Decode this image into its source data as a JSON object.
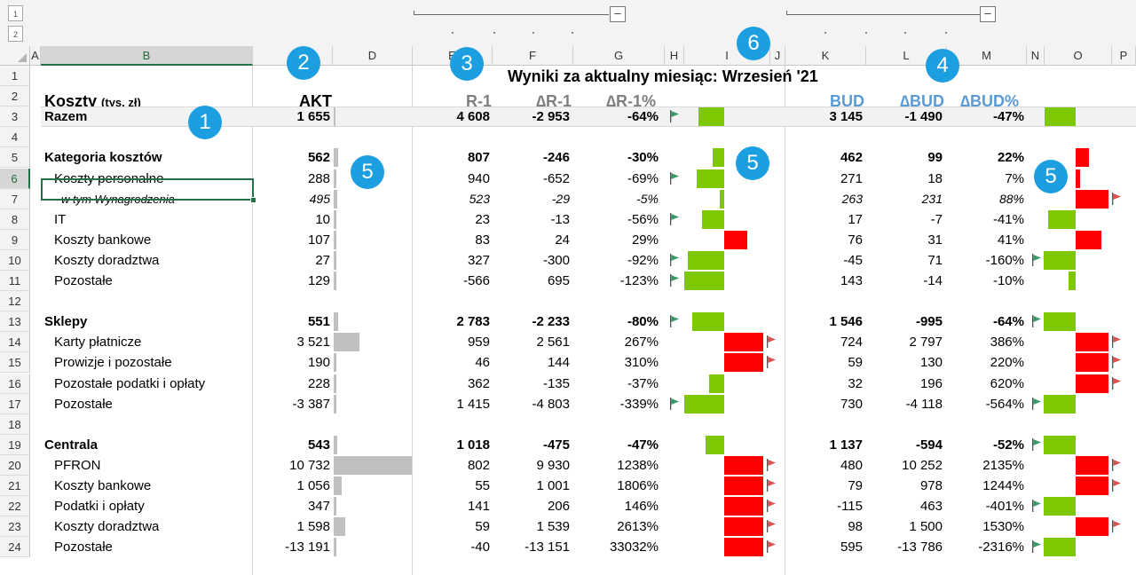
{
  "outline": {
    "levels": [
      "1",
      "2"
    ],
    "collapse_symbol": "–"
  },
  "columns": [
    "A",
    "B",
    "D",
    "E",
    "F",
    "G",
    "H",
    "I",
    "J",
    "K",
    "L",
    "M",
    "N",
    "O",
    "P"
  ],
  "selected_column": "B",
  "selected_row": "6",
  "title": "Wyniki za aktualny miesiąc: Wrzesień '21",
  "headers": {
    "koszty": "Koszty",
    "koszty_unit": "(tys. zł)",
    "akt": "AKT",
    "r1": "R-1",
    "dr1": "∆R-1",
    "dr1p": "∆R-1%",
    "bud": "BUD",
    "dbud": "∆BUD",
    "dbudp": "∆BUD%"
  },
  "badges": [
    "1",
    "2",
    "3",
    "4",
    "5",
    "5",
    "5",
    "6"
  ],
  "colors": {
    "good": "#7dc800",
    "bad": "#ff0000",
    "neutral_bar": "#bfbfbf",
    "flag_good": "#3a9a6a",
    "flag_bad": "#d9534f",
    "badge": "#1b9fe0",
    "bud_header": "#5b9bd5"
  },
  "rows": [
    {
      "n": "1"
    },
    {
      "n": "2"
    },
    {
      "n": "3",
      "label": "Razem",
      "style": "bold",
      "band": true,
      "akt": "1 655",
      "r1": "4 608",
      "dr1": "-2 953",
      "dr1p": "-64%",
      "bud": "3 145",
      "dbud": "-1 490",
      "dbudp": "-47%",
      "akt_v": 1655,
      "dr1p_v": -64,
      "dbudp_v": -47,
      "flag_r": true,
      "flag_b": false
    },
    {
      "n": "4"
    },
    {
      "n": "5",
      "label": "Kategoria kosztów",
      "style": "bold",
      "akt": "562",
      "r1": "807",
      "dr1": "-246",
      "dr1p": "-30%",
      "bud": "462",
      "dbud": "99",
      "dbudp": "22%",
      "akt_v": 562,
      "dr1p_v": -30,
      "dbudp_v": 22,
      "flag_r": false,
      "flag_b": false
    },
    {
      "n": "6",
      "label": "Koszty personalne",
      "style": "indent",
      "akt": "288",
      "r1": "940",
      "dr1": "-652",
      "dr1p": "-69%",
      "bud": "271",
      "dbud": "18",
      "dbudp": "7%",
      "akt_v": 288,
      "dr1p_v": -69,
      "dbudp_v": 7,
      "flag_r": true,
      "flag_b": false
    },
    {
      "n": "7",
      "label": "w tym Wynagrodzenia",
      "style": "italic",
      "akt": "495",
      "r1": "523",
      "dr1": "-29",
      "dr1p": "-5%",
      "bud": "263",
      "dbud": "231",
      "dbudp": "88%",
      "akt_v": 495,
      "dr1p_v": -5,
      "dbudp_v": 88,
      "flag_r": false,
      "flag_b": true
    },
    {
      "n": "8",
      "label": "IT",
      "style": "indent",
      "akt": "10",
      "r1": "23",
      "dr1": "-13",
      "dr1p": "-56%",
      "bud": "17",
      "dbud": "-7",
      "dbudp": "-41%",
      "akt_v": 10,
      "dr1p_v": -56,
      "dbudp_v": -41,
      "flag_r": true,
      "flag_b": false
    },
    {
      "n": "9",
      "label": "Koszty bankowe",
      "style": "indent",
      "akt": "107",
      "r1": "83",
      "dr1": "24",
      "dr1p": "29%",
      "bud": "76",
      "dbud": "31",
      "dbudp": "41%",
      "akt_v": 107,
      "dr1p_v": 29,
      "dbudp_v": 41,
      "flag_r": false,
      "flag_b": false
    },
    {
      "n": "10",
      "label": "Koszty doradztwa",
      "style": "indent",
      "akt": "27",
      "r1": "327",
      "dr1": "-300",
      "dr1p": "-92%",
      "bud": "-45",
      "dbud": "71",
      "dbudp": "-160%",
      "akt_v": 27,
      "dr1p_v": -92,
      "dbudp_v": -160,
      "flag_r": true,
      "flag_b": true
    },
    {
      "n": "11",
      "label": "Pozostałe",
      "style": "indent",
      "akt": "129",
      "r1": "-566",
      "dr1": "695",
      "dr1p": "-123%",
      "bud": "143",
      "dbud": "-14",
      "dbudp": "-10%",
      "akt_v": 129,
      "dr1p_v": -123,
      "dbudp_v": -10,
      "flag_r": true,
      "flag_b": false
    },
    {
      "n": "12"
    },
    {
      "n": "13",
      "label": "Sklepy",
      "style": "bold",
      "akt": "551",
      "r1": "2 783",
      "dr1": "-2 233",
      "dr1p": "-80%",
      "bud": "1 546",
      "dbud": "-995",
      "dbudp": "-64%",
      "akt_v": 551,
      "dr1p_v": -80,
      "dbudp_v": -64,
      "flag_r": true,
      "flag_b": true
    },
    {
      "n": "14",
      "label": "Karty płatnicze",
      "style": "indent",
      "akt": "3 521",
      "r1": "959",
      "dr1": "2 561",
      "dr1p": "267%",
      "bud": "724",
      "dbud": "2 797",
      "dbudp": "386%",
      "akt_v": 3521,
      "dr1p_v": 267,
      "dbudp_v": 386,
      "flag_r": true,
      "flag_b": true
    },
    {
      "n": "15",
      "label": "Prowizje i pozostałe",
      "style": "indent",
      "akt": "190",
      "r1": "46",
      "dr1": "144",
      "dr1p": "310%",
      "bud": "59",
      "dbud": "130",
      "dbudp": "220%",
      "akt_v": 190,
      "dr1p_v": 310,
      "dbudp_v": 220,
      "flag_r": true,
      "flag_b": true
    },
    {
      "n": "16",
      "label": "Pozostałe podatki i opłaty",
      "style": "indent",
      "akt": "228",
      "r1": "362",
      "dr1": "-135",
      "dr1p": "-37%",
      "bud": "32",
      "dbud": "196",
      "dbudp": "620%",
      "akt_v": 228,
      "dr1p_v": -37,
      "dbudp_v": 620,
      "flag_r": false,
      "flag_b": true
    },
    {
      "n": "17",
      "label": "Pozostałe",
      "style": "indent",
      "akt": "-3 387",
      "r1": "1 415",
      "dr1": "-4 803",
      "dr1p": "-339%",
      "bud": "730",
      "dbud": "-4 118",
      "dbudp": "-564%",
      "akt_v": -3387,
      "dr1p_v": -339,
      "dbudp_v": -564,
      "flag_r": true,
      "flag_b": true
    },
    {
      "n": "18"
    },
    {
      "n": "19",
      "label": "Centrala",
      "style": "bold",
      "akt": "543",
      "r1": "1 018",
      "dr1": "-475",
      "dr1p": "-47%",
      "bud": "1 137",
      "dbud": "-594",
      "dbudp": "-52%",
      "akt_v": 543,
      "dr1p_v": -47,
      "dbudp_v": -52,
      "flag_r": false,
      "flag_b": true
    },
    {
      "n": "20",
      "label": "PFRON",
      "style": "indent",
      "akt": "10 732",
      "r1": "802",
      "dr1": "9 930",
      "dr1p": "1238%",
      "bud": "480",
      "dbud": "10 252",
      "dbudp": "2135%",
      "akt_v": 10732,
      "dr1p_v": 1238,
      "dbudp_v": 2135,
      "flag_r": true,
      "flag_b": true
    },
    {
      "n": "21",
      "label": "Koszty bankowe",
      "style": "indent",
      "akt": "1 056",
      "r1": "55",
      "dr1": "1 001",
      "dr1p": "1806%",
      "bud": "79",
      "dbud": "978",
      "dbudp": "1244%",
      "akt_v": 1056,
      "dr1p_v": 1806,
      "dbudp_v": 1244,
      "flag_r": true,
      "flag_b": true
    },
    {
      "n": "22",
      "label": "Podatki i opłaty",
      "style": "indent",
      "akt": "347",
      "r1": "141",
      "dr1": "206",
      "dr1p": "146%",
      "bud": "-115",
      "dbud": "463",
      "dbudp": "-401%",
      "akt_v": 347,
      "dr1p_v": 146,
      "dbudp_v": -401,
      "flag_r": true,
      "flag_b": true
    },
    {
      "n": "23",
      "label": "Koszty doradztwa",
      "style": "indent",
      "akt": "1 598",
      "r1": "59",
      "dr1": "1 539",
      "dr1p": "2613%",
      "bud": "98",
      "dbud": "1 500",
      "dbudp": "1530%",
      "akt_v": 1598,
      "dr1p_v": 2613,
      "dbudp_v": 1530,
      "flag_r": true,
      "flag_b": true
    },
    {
      "n": "24",
      "label": "Pozostałe",
      "style": "indent",
      "akt": "-13 191",
      "r1": "-40",
      "dr1": "-13 151",
      "dr1p": "33032%",
      "bud": "595",
      "dbud": "-13 786",
      "dbudp": "-2316%",
      "akt_v": -13191,
      "dr1p_v": 33032,
      "dbudp_v": -2316,
      "flag_r": true,
      "flag_b": true
    }
  ]
}
